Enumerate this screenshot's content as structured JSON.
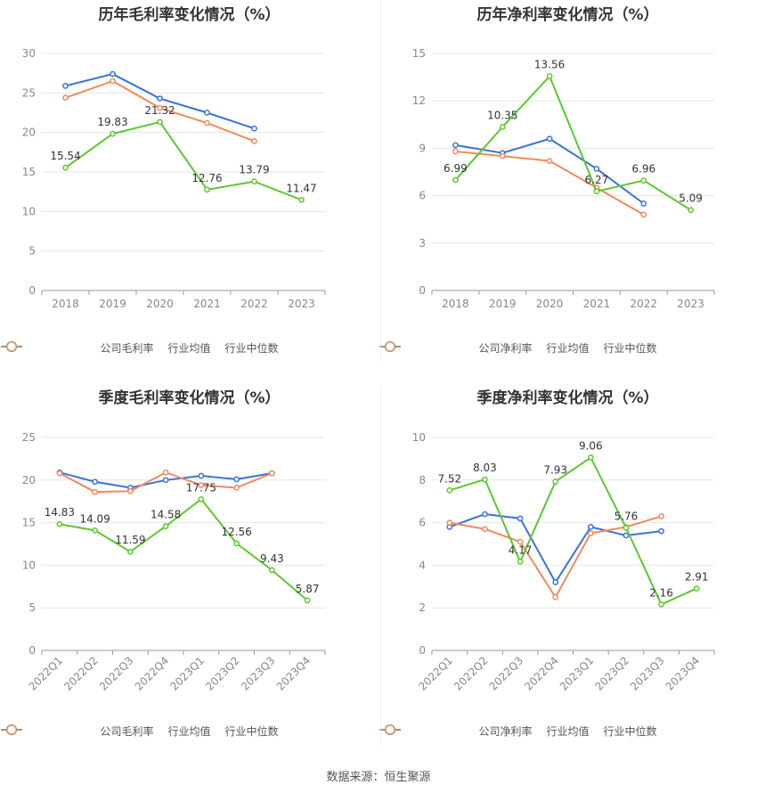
{
  "colors": {
    "company": "#5cc82f",
    "avg": "#3a72d8",
    "median": "#f08a5d",
    "grid": "#e3e6ec",
    "axis": "#999999",
    "tick": "#888888",
    "label": "#333333"
  },
  "source_text": "数据来源：恒生聚源",
  "chart_data": [
    {
      "type": "line",
      "title": "历年毛利率变化情况（%）",
      "categories": [
        "2018",
        "2019",
        "2020",
        "2021",
        "2022",
        "2023"
      ],
      "ylim": [
        0,
        30
      ],
      "yticks": [
        0,
        5,
        10,
        15,
        20,
        25,
        30
      ],
      "rotate_x_labels": false,
      "series": [
        {
          "name": "公司毛利率",
          "role": "company",
          "values": [
            15.54,
            19.83,
            21.32,
            12.76,
            13.79,
            11.47
          ],
          "labels": [
            "15.54",
            "19.83",
            "21.32",
            "12.76",
            "13.79",
            "11.47"
          ]
        },
        {
          "name": "行业均值",
          "role": "avg",
          "values": [
            25.9,
            27.4,
            24.3,
            22.5,
            20.5,
            null
          ]
        },
        {
          "name": "行业中位数",
          "role": "median",
          "values": [
            24.4,
            26.5,
            23.1,
            21.2,
            18.9,
            null
          ]
        }
      ]
    },
    {
      "type": "line",
      "title": "历年净利率变化情况（%）",
      "categories": [
        "2018",
        "2019",
        "2020",
        "2021",
        "2022",
        "2023"
      ],
      "ylim": [
        0,
        15
      ],
      "yticks": [
        0,
        3,
        6,
        9,
        12,
        15
      ],
      "rotate_x_labels": false,
      "series": [
        {
          "name": "公司净利率",
          "role": "company",
          "values": [
            6.99,
            10.35,
            13.56,
            6.27,
            6.96,
            5.09
          ],
          "labels": [
            "6.99",
            "10.35",
            "13.56",
            "6.27",
            "6.96",
            "5.09"
          ]
        },
        {
          "name": "行业均值",
          "role": "avg",
          "values": [
            9.2,
            8.7,
            9.6,
            7.7,
            5.5,
            null
          ]
        },
        {
          "name": "行业中位数",
          "role": "median",
          "values": [
            8.8,
            8.5,
            8.2,
            6.5,
            4.8,
            null
          ]
        }
      ]
    },
    {
      "type": "line",
      "title": "季度毛利率变化情况（%）",
      "categories": [
        "2022Q1",
        "2022Q2",
        "2022Q3",
        "2022Q4",
        "2023Q1",
        "2023Q2",
        "2023Q3",
        "2023Q4"
      ],
      "ylim": [
        0,
        25
      ],
      "yticks": [
        0,
        5,
        10,
        15,
        20,
        25
      ],
      "rotate_x_labels": true,
      "series": [
        {
          "name": "公司毛利率",
          "role": "company",
          "values": [
            14.83,
            14.09,
            11.59,
            14.58,
            17.75,
            12.56,
            9.43,
            5.87
          ],
          "labels": [
            "14.83",
            "14.09",
            "11.59",
            "14.58",
            "17.75",
            "12.56",
            "9.43",
            "5.87"
          ]
        },
        {
          "name": "行业均值",
          "role": "avg",
          "values": [
            20.9,
            19.8,
            19.1,
            20.0,
            20.5,
            20.1,
            20.8,
            null
          ]
        },
        {
          "name": "行业中位数",
          "role": "median",
          "values": [
            20.8,
            18.6,
            18.7,
            20.9,
            19.4,
            19.1,
            20.8,
            null
          ]
        }
      ]
    },
    {
      "type": "line",
      "title": "季度净利率变化情况（%）",
      "categories": [
        "2022Q1",
        "2022Q2",
        "2022Q3",
        "2022Q4",
        "2023Q1",
        "2023Q2",
        "2023Q3",
        "2023Q4"
      ],
      "ylim": [
        0,
        10
      ],
      "yticks": [
        0,
        2,
        4,
        6,
        8,
        10
      ],
      "rotate_x_labels": true,
      "series": [
        {
          "name": "公司净利率",
          "role": "company",
          "values": [
            7.52,
            8.03,
            4.17,
            7.93,
            9.06,
            5.76,
            2.16,
            2.91
          ],
          "labels": [
            "7.52",
            "8.03",
            "4.17",
            "7.93",
            "9.06",
            "5.76",
            "2.16",
            "2.91"
          ]
        },
        {
          "name": "行业均值",
          "role": "avg",
          "values": [
            5.8,
            6.4,
            6.2,
            3.2,
            5.8,
            5.4,
            5.6,
            null
          ]
        },
        {
          "name": "行业中位数",
          "role": "median",
          "values": [
            6.0,
            5.7,
            5.1,
            2.5,
            5.5,
            5.8,
            6.3,
            null
          ]
        }
      ]
    }
  ]
}
